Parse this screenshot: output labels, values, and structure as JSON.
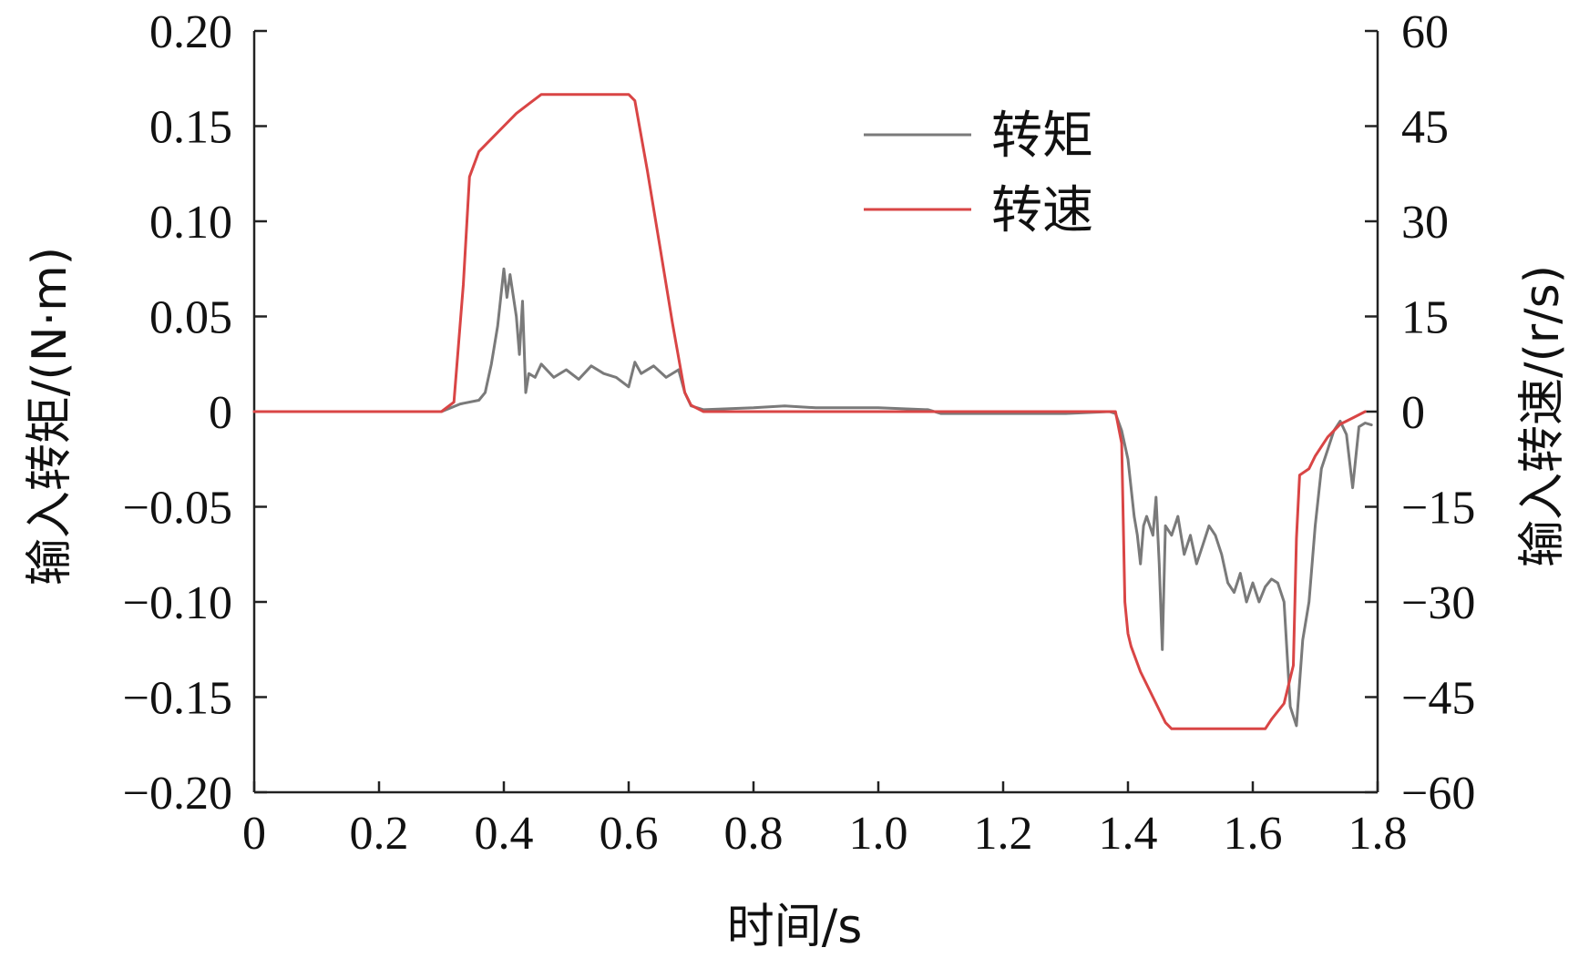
{
  "chart_data": {
    "type": "line",
    "xlabel": "时间/s",
    "ylabel_left": "输入转矩/(N·m)",
    "ylabel_right": "输入转速/(r/s)",
    "xlim": [
      0,
      1.8
    ],
    "ylim_left": [
      -0.2,
      0.2
    ],
    "ylim_right": [
      -60,
      60
    ],
    "x_ticks": [
      "0",
      "0.2",
      "0.4",
      "0.6",
      "0.8",
      "1.0",
      "1.2",
      "1.4",
      "1.6",
      "1.8"
    ],
    "x_tick_values": [
      0,
      0.2,
      0.4,
      0.6,
      0.8,
      1.0,
      1.2,
      1.4,
      1.6,
      1.8
    ],
    "y_left_ticks": [
      "0.20",
      "0.15",
      "0.10",
      "0.05",
      "0",
      "−0.05",
      "−0.10",
      "−0.15",
      "−0.20"
    ],
    "y_left_tick_values": [
      0.2,
      0.15,
      0.1,
      0.05,
      0,
      -0.05,
      -0.1,
      -0.15,
      -0.2
    ],
    "y_right_ticks": [
      "60",
      "45",
      "30",
      "15",
      "0",
      "−15",
      "−30",
      "−45",
      "−60"
    ],
    "y_right_tick_values": [
      60,
      45,
      30,
      15,
      0,
      -15,
      -30,
      -45,
      -60
    ],
    "grid": false,
    "legend_position": "top-center",
    "series": [
      {
        "name": "转矩",
        "axis": "left",
        "color": "#7a7a7a",
        "points": [
          [
            0,
            0
          ],
          [
            0.3,
            0
          ],
          [
            0.33,
            0.004
          ],
          [
            0.36,
            0.006
          ],
          [
            0.37,
            0.01
          ],
          [
            0.38,
            0.025
          ],
          [
            0.39,
            0.045
          ],
          [
            0.4,
            0.075
          ],
          [
            0.405,
            0.06
          ],
          [
            0.41,
            0.072
          ],
          [
            0.42,
            0.05
          ],
          [
            0.425,
            0.03
          ],
          [
            0.43,
            0.058
          ],
          [
            0.435,
            0.01
          ],
          [
            0.44,
            0.02
          ],
          [
            0.45,
            0.018
          ],
          [
            0.46,
            0.025
          ],
          [
            0.48,
            0.018
          ],
          [
            0.5,
            0.022
          ],
          [
            0.52,
            0.017
          ],
          [
            0.54,
            0.024
          ],
          [
            0.56,
            0.02
          ],
          [
            0.58,
            0.018
          ],
          [
            0.6,
            0.013
          ],
          [
            0.61,
            0.026
          ],
          [
            0.62,
            0.02
          ],
          [
            0.64,
            0.024
          ],
          [
            0.66,
            0.018
          ],
          [
            0.68,
            0.022
          ],
          [
            0.69,
            0.01
          ],
          [
            0.7,
            0.003
          ],
          [
            0.72,
            0.001
          ],
          [
            0.8,
            0.002
          ],
          [
            0.85,
            0.003
          ],
          [
            0.9,
            0.002
          ],
          [
            1.0,
            0.002
          ],
          [
            1.08,
            0.001
          ],
          [
            1.1,
            -0.001
          ],
          [
            1.2,
            -0.001
          ],
          [
            1.3,
            -0.001
          ],
          [
            1.37,
            0
          ],
          [
            1.38,
            -0.001
          ],
          [
            1.39,
            -0.01
          ],
          [
            1.4,
            -0.025
          ],
          [
            1.41,
            -0.055
          ],
          [
            1.415,
            -0.065
          ],
          [
            1.42,
            -0.08
          ],
          [
            1.425,
            -0.06
          ],
          [
            1.43,
            -0.055
          ],
          [
            1.44,
            -0.065
          ],
          [
            1.445,
            -0.045
          ],
          [
            1.45,
            -0.08
          ],
          [
            1.455,
            -0.125
          ],
          [
            1.46,
            -0.06
          ],
          [
            1.47,
            -0.065
          ],
          [
            1.48,
            -0.055
          ],
          [
            1.49,
            -0.075
          ],
          [
            1.5,
            -0.065
          ],
          [
            1.51,
            -0.08
          ],
          [
            1.52,
            -0.07
          ],
          [
            1.53,
            -0.06
          ],
          [
            1.54,
            -0.065
          ],
          [
            1.55,
            -0.075
          ],
          [
            1.56,
            -0.09
          ],
          [
            1.57,
            -0.095
          ],
          [
            1.58,
            -0.085
          ],
          [
            1.59,
            -0.1
          ],
          [
            1.6,
            -0.09
          ],
          [
            1.61,
            -0.1
          ],
          [
            1.62,
            -0.092
          ],
          [
            1.63,
            -0.088
          ],
          [
            1.64,
            -0.09
          ],
          [
            1.65,
            -0.1
          ],
          [
            1.66,
            -0.155
          ],
          [
            1.67,
            -0.165
          ],
          [
            1.68,
            -0.12
          ],
          [
            1.69,
            -0.1
          ],
          [
            1.7,
            -0.06
          ],
          [
            1.71,
            -0.03
          ],
          [
            1.72,
            -0.02
          ],
          [
            1.73,
            -0.01
          ],
          [
            1.74,
            -0.005
          ],
          [
            1.75,
            -0.012
          ],
          [
            1.76,
            -0.04
          ],
          [
            1.77,
            -0.008
          ],
          [
            1.78,
            -0.006
          ],
          [
            1.79,
            -0.007
          ]
        ]
      },
      {
        "name": "转速",
        "axis": "right",
        "color": "#d94545",
        "points": [
          [
            0,
            0
          ],
          [
            0.3,
            0
          ],
          [
            0.32,
            1.5
          ],
          [
            0.335,
            20
          ],
          [
            0.345,
            37
          ],
          [
            0.36,
            41
          ],
          [
            0.38,
            43
          ],
          [
            0.4,
            45
          ],
          [
            0.42,
            47
          ],
          [
            0.44,
            48.5
          ],
          [
            0.46,
            50
          ],
          [
            0.5,
            50
          ],
          [
            0.55,
            50
          ],
          [
            0.6,
            50
          ],
          [
            0.61,
            49
          ],
          [
            0.63,
            38
          ],
          [
            0.65,
            26
          ],
          [
            0.67,
            14
          ],
          [
            0.69,
            3
          ],
          [
            0.7,
            1
          ],
          [
            0.72,
            0
          ],
          [
            1.0,
            0
          ],
          [
            1.38,
            0
          ],
          [
            1.39,
            -5
          ],
          [
            1.395,
            -30
          ],
          [
            1.4,
            -35
          ],
          [
            1.405,
            -37
          ],
          [
            1.42,
            -41
          ],
          [
            1.44,
            -45
          ],
          [
            1.46,
            -49
          ],
          [
            1.47,
            -50
          ],
          [
            1.55,
            -50
          ],
          [
            1.62,
            -50
          ],
          [
            1.63,
            -48.5
          ],
          [
            1.65,
            -46
          ],
          [
            1.665,
            -40
          ],
          [
            1.67,
            -20
          ],
          [
            1.675,
            -10
          ],
          [
            1.69,
            -9
          ],
          [
            1.7,
            -7
          ],
          [
            1.72,
            -4
          ],
          [
            1.74,
            -2
          ],
          [
            1.76,
            -1
          ],
          [
            1.78,
            0
          ]
        ]
      }
    ]
  }
}
